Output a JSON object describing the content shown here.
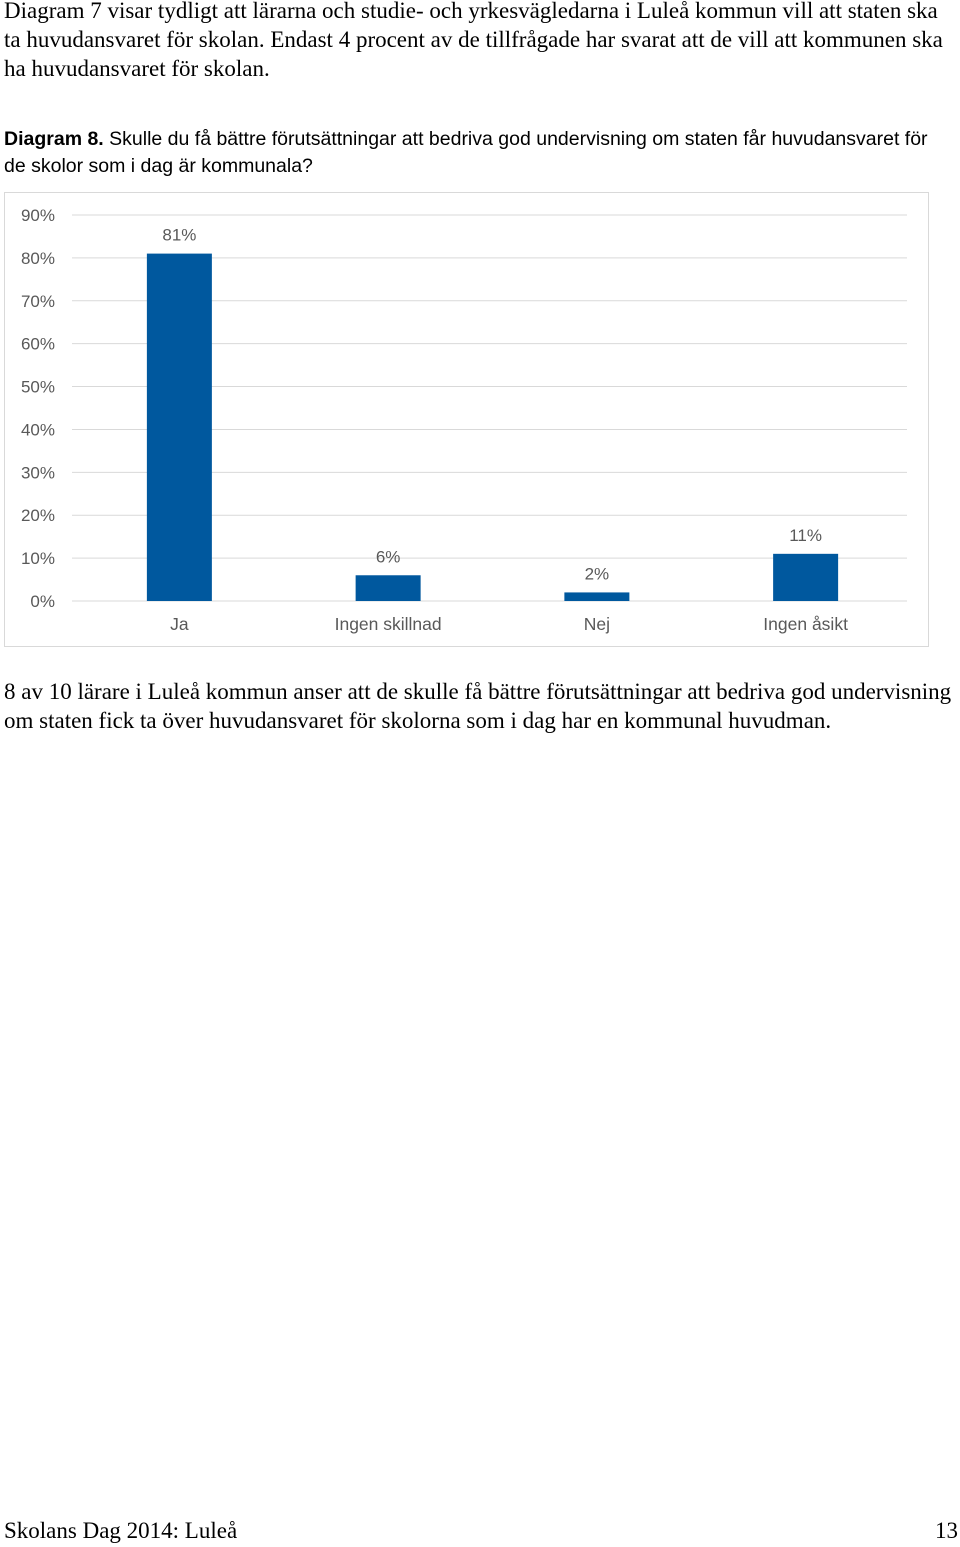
{
  "intro_text": "Diagram 7 visar tydligt att lärarna och studie- och yrkesvägledarna i Luleå kommun vill att staten ska ta huvudansvaret för skolan. Endast 4 procent av de tillfrågade har svarat att de vill att kommunen ska ha huvudansvaret för skolan.",
  "caption": {
    "label": "Diagram 8.",
    "text": " Skulle du få bättre förutsättningar att bedriva god undervisning om staten får huvudansvaret för de skolor som i dag är kommunala?"
  },
  "chart_data": {
    "type": "bar",
    "categories": [
      "Ja",
      "Ingen skillnad",
      "Nej",
      "Ingen åsikt"
    ],
    "values": [
      81,
      6,
      2,
      11
    ],
    "value_labels": [
      "81%",
      "6%",
      "2%",
      "11%"
    ],
    "y_ticks": [
      "0%",
      "10%",
      "20%",
      "30%",
      "40%",
      "50%",
      "60%",
      "70%",
      "80%",
      "90%"
    ],
    "ylim": [
      0,
      90
    ],
    "grid": true,
    "bar_color": "#00589e",
    "grid_color": "#d9d9d9",
    "label_color": "#595959"
  },
  "conclusion_text": "8 av 10 lärare i Luleå kommun anser att de skulle få bättre förutsättningar att bedriva god undervisning om staten fick ta över huvudansvaret för skolorna som i dag har en kommunal huvudman.",
  "footer": {
    "left": "Skolans Dag 2014: Luleå",
    "page_number": "13"
  }
}
